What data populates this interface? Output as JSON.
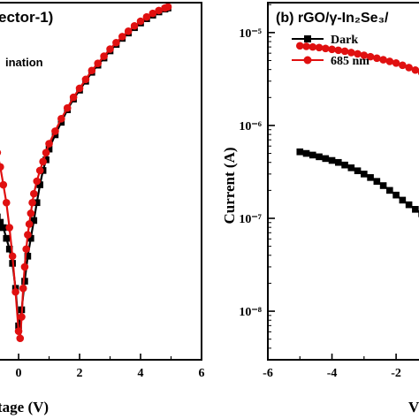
{
  "chart_data": [
    {
      "panel": "left",
      "type": "line",
      "title": "ector-1)",
      "xlabel": "tage (V)",
      "ylabel": "",
      "xlim": [
        -0.9,
        6.0
      ],
      "xticks": [
        "0",
        "2",
        "4",
        "6"
      ],
      "xtick_values": [
        0,
        2,
        4,
        6
      ],
      "ylim": [
        0,
        1
      ],
      "scale": "linear",
      "legend_text": "ination",
      "series": [
        {
          "name": "",
          "color": "#e01010",
          "marker": "circle",
          "x": [
            -0.85,
            -0.8,
            -0.7,
            -0.6,
            -0.5,
            -0.4,
            -0.3,
            -0.2,
            -0.1,
            0.0,
            0.05,
            0.1,
            0.15,
            0.2,
            0.25,
            0.3,
            0.35,
            0.4,
            0.45,
            0.5,
            0.6,
            0.7,
            0.8,
            0.9,
            1.0,
            1.2,
            1.4,
            1.6,
            1.8,
            2.0,
            2.2,
            2.4,
            2.6,
            2.8,
            3.0,
            3.2,
            3.4,
            3.6,
            3.8,
            4.0,
            4.2,
            4.4,
            4.6,
            4.8,
            4.9
          ],
          "y": [
            0.685,
            0.62,
            0.58,
            0.54,
            0.49,
            0.44,
            0.37,
            0.29,
            0.19,
            0.08,
            0.06,
            0.12,
            0.2,
            0.26,
            0.31,
            0.35,
            0.38,
            0.41,
            0.44,
            0.465,
            0.5,
            0.53,
            0.555,
            0.58,
            0.605,
            0.64,
            0.675,
            0.705,
            0.735,
            0.76,
            0.785,
            0.81,
            0.83,
            0.85,
            0.87,
            0.888,
            0.905,
            0.92,
            0.935,
            0.948,
            0.96,
            0.97,
            0.978,
            0.985,
            0.988
          ]
        },
        {
          "name": "",
          "color": "#000000",
          "marker": "square",
          "x": [
            -0.85,
            -0.8,
            -0.7,
            -0.6,
            -0.5,
            -0.4,
            -0.3,
            -0.2,
            -0.1,
            0.0,
            0.1,
            0.2,
            0.3,
            0.4,
            0.5,
            0.6,
            0.7,
            0.8,
            0.9,
            1.0,
            1.2,
            1.4,
            1.6,
            1.8,
            2.0,
            2.2,
            2.4,
            2.6,
            2.8,
            3.0,
            3.2,
            3.4,
            3.6,
            3.8,
            4.0,
            4.2,
            4.4,
            4.6,
            4.8,
            4.9
          ],
          "y": [
            0.43,
            0.41,
            0.4,
            0.385,
            0.37,
            0.34,
            0.31,
            0.27,
            0.2,
            0.095,
            0.14,
            0.22,
            0.29,
            0.34,
            0.39,
            0.44,
            0.49,
            0.53,
            0.56,
            0.59,
            0.63,
            0.665,
            0.7,
            0.73,
            0.755,
            0.78,
            0.805,
            0.825,
            0.845,
            0.865,
            0.883,
            0.9,
            0.915,
            0.93,
            0.943,
            0.955,
            0.965,
            0.974,
            0.982,
            0.985
          ]
        }
      ]
    },
    {
      "panel": "right",
      "type": "line",
      "title": "(b) rGO/γ-In₂Se₃/",
      "xlabel": "V",
      "ylabel": "Current (A)",
      "xlim": [
        -6,
        -0.9
      ],
      "xticks": [
        "-6",
        "-4",
        "-2"
      ],
      "xtick_values": [
        -6,
        -4,
        -2
      ],
      "scale": "log",
      "ylim": [
        3e-09,
        2.1e-05
      ],
      "yticks": [
        "10⁻⁵",
        "10⁻⁶",
        "10⁻⁷",
        "10⁻⁸"
      ],
      "ytick_values": [
        1e-05,
        1e-06,
        1e-07,
        1e-08
      ],
      "legend": "top-left",
      "series": [
        {
          "name": "Dark",
          "color": "#000000",
          "marker": "square",
          "x": [
            -5.0,
            -4.8,
            -4.6,
            -4.4,
            -4.2,
            -4.0,
            -3.8,
            -3.6,
            -3.4,
            -3.2,
            -3.0,
            -2.8,
            -2.6,
            -2.4,
            -2.2,
            -2.0,
            -1.8,
            -1.6,
            -1.4,
            -1.2,
            -1.0
          ],
          "y": [
            5.2e-07,
            5e-07,
            4.8e-07,
            4.6e-07,
            4.4e-07,
            4.2e-07,
            4e-07,
            3.75e-07,
            3.5e-07,
            3.25e-07,
            3e-07,
            2.75e-07,
            2.5e-07,
            2.25e-07,
            2e-07,
            1.78e-07,
            1.57e-07,
            1.4e-07,
            1.25e-07,
            1.12e-07,
            1e-07
          ]
        },
        {
          "name": "685 nm",
          "color": "#e01010",
          "marker": "circle",
          "x": [
            -5.0,
            -4.8,
            -4.6,
            -4.4,
            -4.2,
            -4.0,
            -3.8,
            -3.6,
            -3.4,
            -3.2,
            -3.0,
            -2.8,
            -2.6,
            -2.4,
            -2.2,
            -2.0,
            -1.8,
            -1.6,
            -1.4,
            -1.2,
            -1.0
          ],
          "y": [
            7.2e-06,
            7.1e-06,
            7e-06,
            6.9e-06,
            6.75e-06,
            6.6e-06,
            6.45e-06,
            6.3e-06,
            6.1e-06,
            5.9e-06,
            5.7e-06,
            5.5e-06,
            5.3e-06,
            5.1e-06,
            4.9e-06,
            4.7e-06,
            4.45e-06,
            4.2e-06,
            3.95e-06,
            3.7e-06,
            3.5e-06
          ]
        }
      ]
    }
  ]
}
